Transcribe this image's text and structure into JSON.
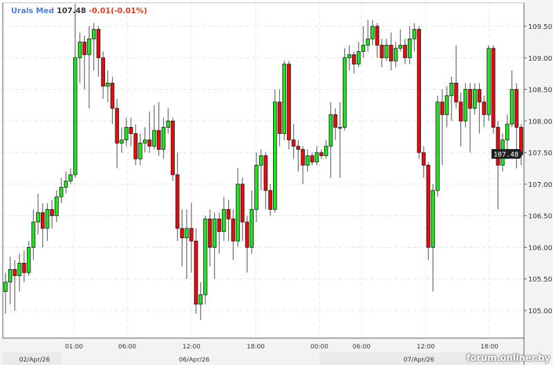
{
  "header": {
    "symbol": "Urals Med",
    "last": "107.48",
    "change": "-0.01(-0.01%)"
  },
  "watermark": "forum.onliner.by",
  "colors": {
    "up": "#1ee61e",
    "down": "#e80c0c",
    "outline": "#111111",
    "symbol": "#4a7fe8",
    "change": "#e03a1e"
  },
  "chart_data": {
    "type": "candlestick",
    "ylim": [
      104.75,
      109.85
    ],
    "y_ticks": [
      "105.00",
      "105.50",
      "106.00",
      "106.50",
      "107.00",
      "107.50",
      "108.00",
      "108.50",
      "109.00",
      "109.50"
    ],
    "x_ticks": [
      "01:00",
      "06:00",
      "12:00",
      "18:00",
      "00:00",
      "06:00",
      "12:00",
      "18:00"
    ],
    "date_labels": [
      "02/Apr/26",
      "06/Apr/26",
      "07/Apr/26"
    ],
    "last_price_label": "107.48",
    "grid": true,
    "candles_ohlc": [
      [
        105.3,
        105.6,
        104.95,
        105.45
      ],
      [
        105.45,
        105.85,
        105.1,
        105.65
      ],
      [
        105.65,
        105.8,
        105.0,
        105.55
      ],
      [
        105.55,
        105.9,
        105.3,
        105.75
      ],
      [
        105.75,
        105.95,
        105.45,
        105.6
      ],
      [
        105.6,
        106.1,
        105.55,
        106.0
      ],
      [
        106.0,
        106.6,
        105.8,
        106.4
      ],
      [
        106.4,
        106.85,
        106.2,
        106.55
      ],
      [
        106.55,
        106.7,
        106.0,
        106.3
      ],
      [
        106.3,
        106.7,
        106.1,
        106.6
      ],
      [
        106.6,
        106.75,
        106.3,
        106.5
      ],
      [
        106.5,
        106.9,
        106.4,
        106.8
      ],
      [
        106.8,
        107.1,
        106.7,
        106.95
      ],
      [
        106.95,
        107.2,
        106.85,
        107.05
      ],
      [
        107.05,
        107.25,
        107.0,
        107.15
      ],
      [
        107.15,
        109.85,
        107.1,
        109.0
      ],
      [
        109.0,
        109.4,
        108.6,
        109.25
      ],
      [
        109.25,
        109.35,
        108.5,
        109.05
      ],
      [
        109.05,
        109.5,
        108.2,
        109.3
      ],
      [
        109.3,
        109.55,
        108.8,
        109.45
      ],
      [
        109.45,
        109.5,
        108.7,
        109.0
      ],
      [
        109.0,
        109.1,
        108.35,
        108.55
      ],
      [
        108.55,
        108.8,
        108.3,
        108.6
      ],
      [
        108.6,
        108.7,
        107.95,
        108.2
      ],
      [
        108.2,
        108.35,
        107.25,
        107.65
      ],
      [
        107.65,
        107.9,
        107.5,
        107.7
      ],
      [
        107.7,
        108.05,
        107.6,
        107.9
      ],
      [
        107.9,
        108.05,
        107.6,
        107.8
      ],
      [
        107.8,
        107.95,
        107.3,
        107.4
      ],
      [
        107.4,
        107.8,
        107.3,
        107.65
      ],
      [
        107.65,
        107.9,
        107.5,
        107.7
      ],
      [
        107.7,
        108.15,
        107.5,
        107.6
      ],
      [
        107.6,
        108.25,
        107.55,
        107.85
      ],
      [
        107.85,
        108.3,
        107.45,
        107.55
      ],
      [
        107.55,
        108.05,
        107.4,
        107.9
      ],
      [
        107.9,
        108.2,
        107.8,
        108.0
      ],
      [
        108.0,
        108.05,
        107.05,
        107.15
      ],
      [
        107.15,
        107.5,
        106.1,
        106.3
      ],
      [
        106.3,
        106.6,
        105.7,
        106.15
      ],
      [
        106.15,
        106.6,
        105.5,
        106.3
      ],
      [
        106.3,
        106.7,
        105.6,
        106.1
      ],
      [
        106.1,
        106.3,
        104.95,
        105.1
      ],
      [
        105.1,
        105.45,
        104.85,
        105.25
      ],
      [
        105.25,
        106.5,
        105.1,
        106.45
      ],
      [
        106.45,
        106.6,
        105.7,
        106.0
      ],
      [
        106.0,
        106.55,
        105.5,
        106.45
      ],
      [
        106.45,
        106.55,
        105.9,
        106.25
      ],
      [
        106.25,
        106.8,
        106.1,
        106.6
      ],
      [
        106.6,
        106.75,
        106.1,
        106.45
      ],
      [
        106.45,
        106.6,
        105.8,
        106.1
      ],
      [
        106.1,
        107.25,
        106.0,
        107.0
      ],
      [
        107.0,
        107.1,
        106.1,
        106.4
      ],
      [
        106.4,
        106.5,
        105.6,
        106.0
      ],
      [
        106.0,
        106.9,
        105.9,
        106.6
      ],
      [
        106.6,
        107.5,
        106.4,
        107.3
      ],
      [
        107.3,
        107.55,
        106.9,
        107.45
      ],
      [
        107.45,
        107.5,
        106.6,
        106.9
      ],
      [
        106.9,
        107.0,
        106.5,
        106.6
      ],
      [
        106.6,
        108.5,
        106.55,
        108.3
      ],
      [
        108.3,
        108.5,
        107.6,
        107.8
      ],
      [
        107.8,
        108.95,
        107.7,
        108.9
      ],
      [
        108.9,
        108.95,
        107.55,
        107.7
      ],
      [
        107.7,
        107.95,
        107.4,
        107.6
      ],
      [
        107.6,
        107.7,
        107.2,
        107.55
      ],
      [
        107.55,
        107.6,
        107.0,
        107.3
      ],
      [
        107.3,
        107.55,
        107.2,
        107.45
      ],
      [
        107.45,
        107.5,
        107.3,
        107.35
      ],
      [
        107.35,
        107.6,
        107.3,
        107.5
      ],
      [
        107.5,
        107.55,
        107.4,
        107.45
      ],
      [
        107.45,
        107.7,
        107.4,
        107.6
      ],
      [
        107.6,
        108.3,
        107.1,
        108.1
      ],
      [
        108.1,
        108.2,
        107.7,
        107.9
      ],
      [
        107.9,
        108.3,
        107.1,
        107.9
      ],
      [
        107.9,
        109.15,
        107.85,
        109.0
      ],
      [
        109.0,
        109.2,
        108.8,
        109.05
      ],
      [
        109.05,
        109.1,
        108.75,
        108.9
      ],
      [
        108.9,
        109.25,
        108.85,
        109.1
      ],
      [
        109.1,
        109.5,
        109.0,
        109.2
      ],
      [
        109.2,
        109.6,
        109.1,
        109.3
      ],
      [
        109.3,
        109.6,
        109.2,
        109.5
      ],
      [
        109.5,
        109.55,
        109.0,
        109.2
      ],
      [
        109.2,
        109.3,
        108.85,
        109.0
      ],
      [
        109.0,
        109.3,
        108.95,
        109.2
      ],
      [
        109.2,
        109.4,
        108.8,
        108.95
      ],
      [
        108.95,
        109.25,
        108.85,
        109.15
      ],
      [
        109.15,
        109.45,
        109.1,
        109.2
      ],
      [
        109.2,
        109.3,
        108.9,
        109.0
      ],
      [
        109.0,
        109.5,
        108.9,
        109.3
      ],
      [
        109.3,
        109.55,
        109.1,
        109.45
      ],
      [
        109.45,
        109.5,
        107.4,
        107.5
      ],
      [
        107.5,
        107.6,
        107.1,
        107.3
      ],
      [
        107.3,
        107.35,
        105.8,
        106.0
      ],
      [
        106.0,
        107.0,
        105.3,
        106.9
      ],
      [
        106.9,
        108.4,
        106.8,
        108.3
      ],
      [
        108.3,
        108.5,
        107.3,
        108.1
      ],
      [
        108.1,
        108.55,
        107.9,
        108.4
      ],
      [
        108.4,
        108.7,
        108.0,
        108.6
      ],
      [
        108.6,
        109.2,
        108.2,
        108.3
      ],
      [
        108.3,
        108.45,
        107.6,
        108.0
      ],
      [
        108.0,
        108.6,
        107.9,
        108.5
      ],
      [
        108.5,
        108.6,
        107.5,
        108.2
      ],
      [
        108.2,
        108.6,
        108.1,
        108.5
      ],
      [
        108.5,
        108.6,
        107.8,
        108.3
      ],
      [
        108.3,
        108.4,
        107.9,
        108.1
      ],
      [
        108.1,
        109.2,
        108.0,
        109.15
      ],
      [
        109.15,
        109.2,
        107.8,
        107.9
      ],
      [
        107.9,
        108.0,
        106.6,
        107.3
      ],
      [
        107.3,
        107.8,
        107.2,
        107.7
      ],
      [
        107.7,
        108.1,
        107.4,
        107.95
      ],
      [
        107.95,
        108.8,
        107.9,
        108.5
      ],
      [
        108.5,
        108.6,
        107.25,
        107.9
      ],
      [
        107.9,
        107.95,
        107.3,
        107.48
      ]
    ]
  }
}
